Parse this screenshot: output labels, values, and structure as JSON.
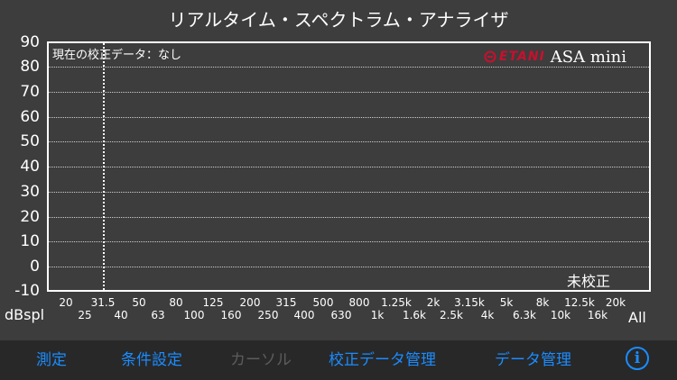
{
  "title": "リアルタイム・スペクトラム・アナライザ",
  "calibration_status": "現在の校正データ：なし",
  "brand": {
    "logo": "ETANI",
    "product": "ASA mini"
  },
  "uncalibrated_label": "未校正",
  "unit_label": "dBspl",
  "all_label": "All",
  "colors": {
    "accent": "#1a8cff",
    "brand_red": "#c8102e",
    "background": "#3d3d3d",
    "toolbar": "#282828"
  },
  "chart_data": {
    "type": "bar",
    "y_ticks": [
      "90",
      "80",
      "70",
      "60",
      "50",
      "40",
      "30",
      "20",
      "10",
      "0",
      "-10"
    ],
    "ylim": [
      -10,
      90
    ],
    "ylabel": "dBspl",
    "categories_row1": [
      "20",
      "31.5",
      "50",
      "80",
      "125",
      "200",
      "315",
      "500",
      "800",
      "1.25k",
      "2k",
      "3.15k",
      "5k",
      "8k",
      "12.5k",
      "20k"
    ],
    "categories_row2": [
      "25",
      "40",
      "63",
      "100",
      "160",
      "250",
      "400",
      "630",
      "1k",
      "1.6k",
      "2.5k",
      "4k",
      "6.3k",
      "10k",
      "16k"
    ],
    "values": [],
    "cursor_at": "31.5",
    "grid": true
  },
  "toolbar": {
    "measure": "測定",
    "conditions": "条件設定",
    "cursor": "カーソル",
    "calib_manage": "校正データ管理",
    "data_manage": "データ管理",
    "info_icon": "i"
  }
}
